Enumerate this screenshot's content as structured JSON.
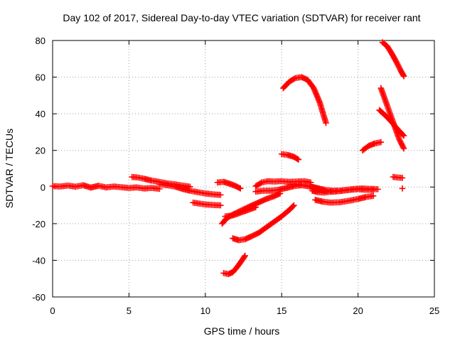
{
  "chart_data": {
    "type": "scatter",
    "title": "Day 102 of 2017, Sidereal Day-to-day VTEC variation (SDTVAR) for receiver rant",
    "xlabel": "GPS time / hours",
    "ylabel": "SDTVAR / TECUs",
    "xlim": [
      0,
      25
    ],
    "ylim": [
      -60,
      80
    ],
    "xticks": [
      0,
      5,
      10,
      15,
      20,
      25
    ],
    "yticks": [
      -60,
      -40,
      -20,
      0,
      20,
      40,
      60,
      80
    ],
    "grid": true,
    "legend": "none",
    "marker": "plus",
    "color": "#ff0000",
    "series": [
      {
        "points": [
          [
            0,
            0.5
          ],
          [
            0.5,
            0.3
          ],
          [
            1,
            0.8
          ],
          [
            1.5,
            0.2
          ],
          [
            2,
            1.0
          ],
          [
            2.5,
            -0.3
          ],
          [
            3,
            0.7
          ],
          [
            3.5,
            -0.2
          ],
          [
            4,
            0.3
          ],
          [
            4.5,
            -0.1
          ],
          [
            5,
            -0.5
          ],
          [
            5.5,
            -0.2
          ],
          [
            6,
            -0.8
          ],
          [
            6.5,
            -0.5
          ],
          [
            7,
            -1.0
          ]
        ]
      },
      {
        "points": [
          [
            5.2,
            5.5
          ],
          [
            5.6,
            5.2
          ],
          [
            6,
            4.5
          ],
          [
            6.5,
            3.5
          ],
          [
            7,
            2.8
          ],
          [
            7.5,
            2.0
          ],
          [
            8,
            1.5
          ],
          [
            8.5,
            0.8
          ],
          [
            9,
            0.2
          ]
        ]
      },
      {
        "points": [
          [
            7,
            1.5
          ],
          [
            7.5,
            1.0
          ],
          [
            8,
            0.3
          ],
          [
            8.5,
            -1.0
          ],
          [
            9,
            -2.0
          ],
          [
            9.5,
            -2.8
          ],
          [
            10,
            -3.5
          ],
          [
            10.5,
            -4.0
          ],
          [
            11,
            -4.3
          ]
        ]
      },
      {
        "points": [
          [
            9.2,
            -8.5
          ],
          [
            9.6,
            -9.0
          ],
          [
            10,
            -9.5
          ],
          [
            10.5,
            -9.8
          ],
          [
            11,
            -10.0
          ]
        ]
      },
      {
        "points": [
          [
            10.8,
            2.5
          ],
          [
            11.2,
            2.8
          ],
          [
            11.6,
            1.8
          ],
          [
            12,
            0.5
          ],
          [
            12.3,
            -0.8
          ]
        ]
      },
      {
        "points": [
          [
            11.1,
            -20.0
          ],
          [
            11.4,
            -17.0
          ],
          [
            11.8,
            -15.0
          ],
          [
            12.3,
            -13.0
          ],
          [
            12.8,
            -11.0
          ],
          [
            13.2,
            -9.5
          ],
          [
            13.6,
            -8.0
          ],
          [
            14,
            -6.5
          ],
          [
            14.5,
            -5.0
          ],
          [
            14.9,
            -3.5
          ]
        ]
      },
      {
        "points": [
          [
            11.3,
            -16.0
          ],
          [
            11.8,
            -15.5
          ],
          [
            12.3,
            -14.0
          ],
          [
            12.8,
            -12.5
          ],
          [
            13.3,
            -11.0
          ]
        ]
      },
      {
        "points": [
          [
            11.2,
            -47.0
          ],
          [
            11.5,
            -47.5
          ],
          [
            11.8,
            -46.5
          ],
          [
            12.1,
            -43.5
          ],
          [
            12.4,
            -40.0
          ],
          [
            12.6,
            -37.5
          ]
        ]
      },
      {
        "points": [
          [
            11.8,
            -28.0
          ],
          [
            12.2,
            -29.0
          ],
          [
            12.6,
            -28.5
          ],
          [
            13,
            -27.0
          ],
          [
            13.5,
            -25.0
          ],
          [
            14,
            -22.0
          ],
          [
            14.5,
            -19.0
          ],
          [
            15,
            -16.0
          ],
          [
            15.5,
            -12.5
          ],
          [
            15.8,
            -10.0
          ]
        ]
      },
      {
        "points": [
          [
            13.3,
            0.5
          ],
          [
            13.7,
            2.5
          ],
          [
            14.1,
            3.2
          ],
          [
            14.5,
            3.0
          ],
          [
            15,
            3.2
          ],
          [
            15.5,
            2.8
          ],
          [
            16,
            3.0
          ],
          [
            16.5,
            3.2
          ],
          [
            16.9,
            2.5
          ]
        ]
      },
      {
        "points": [
          [
            13.3,
            -2.5
          ],
          [
            13.8,
            -2.0
          ],
          [
            14.3,
            -2.0
          ],
          [
            14.8,
            -1.5
          ],
          [
            15.3,
            -0.5
          ],
          [
            15.8,
            0.5
          ],
          [
            16.3,
            1.0
          ],
          [
            16.8,
            0.5
          ],
          [
            17.3,
            -0.5
          ],
          [
            17.8,
            -1.5
          ],
          [
            18.3,
            -2.0
          ],
          [
            18.8,
            -2.0
          ],
          [
            19.3,
            -1.5
          ],
          [
            19.8,
            -1.0
          ],
          [
            20.3,
            -0.8
          ],
          [
            20.8,
            -1.0
          ],
          [
            21.3,
            -1.2
          ]
        ]
      },
      {
        "points": [
          [
            15,
            18.0
          ],
          [
            15.4,
            17.5
          ],
          [
            15.8,
            16.5
          ],
          [
            16.1,
            15.0
          ]
        ]
      },
      {
        "points": [
          [
            15.1,
            54.0
          ],
          [
            15.5,
            57.5
          ],
          [
            15.9,
            59.5
          ],
          [
            16.3,
            60.0
          ],
          [
            16.7,
            58.5
          ],
          [
            17.1,
            54.0
          ],
          [
            17.5,
            46.0
          ],
          [
            17.9,
            35.0
          ]
        ]
      },
      {
        "points": [
          [
            15.6,
            1.5
          ],
          [
            16,
            1.5
          ],
          [
            16.5,
            0.8
          ],
          [
            17,
            0.0
          ],
          [
            17.5,
            -1.5
          ],
          [
            18,
            -2.5
          ],
          [
            18.5,
            -2.5
          ],
          [
            19,
            -2.0
          ],
          [
            19.5,
            -1.5
          ],
          [
            20,
            -1.2
          ],
          [
            20.5,
            -1.5
          ],
          [
            21,
            -1.5
          ]
        ]
      },
      {
        "points": [
          [
            17,
            -2.0
          ],
          [
            17.4,
            -2.8
          ],
          [
            17.8,
            -3.0
          ],
          [
            18.2,
            -2.5
          ],
          [
            18.6,
            -2.0
          ]
        ]
      },
      {
        "points": [
          [
            17.2,
            -7.0
          ],
          [
            17.7,
            -8.0
          ],
          [
            18.2,
            -8.5
          ],
          [
            18.8,
            -8.3
          ],
          [
            19.4,
            -7.5
          ],
          [
            20,
            -6.5
          ],
          [
            20.5,
            -5.5
          ],
          [
            21,
            -4.8
          ]
        ]
      },
      {
        "points": [
          [
            20.3,
            20.0
          ],
          [
            20.7,
            22.5
          ],
          [
            21.1,
            23.8
          ],
          [
            21.5,
            24.5
          ]
        ]
      },
      {
        "points": [
          [
            21.5,
            54.0
          ],
          [
            21.8,
            47.0
          ],
          [
            22.1,
            40.0
          ],
          [
            22.4,
            33.0
          ],
          [
            22.7,
            26.0
          ],
          [
            23,
            21.0
          ]
        ]
      },
      {
        "points": [
          [
            21.4,
            42.0
          ],
          [
            21.8,
            39.0
          ],
          [
            22.2,
            35.5
          ],
          [
            22.6,
            31.5
          ],
          [
            23,
            28.0
          ]
        ]
      },
      {
        "points": [
          [
            21.6,
            79.0
          ],
          [
            21.9,
            77.0
          ],
          [
            22.2,
            73.0
          ],
          [
            22.5,
            68.5
          ],
          [
            22.8,
            63.5
          ],
          [
            23,
            60.5
          ]
        ]
      },
      {
        "points": [
          [
            22.3,
            5.5
          ],
          [
            22.6,
            5.2
          ],
          [
            22.9,
            5.0
          ]
        ]
      },
      {
        "points": [
          [
            22.9,
            -0.8
          ]
        ]
      }
    ]
  }
}
